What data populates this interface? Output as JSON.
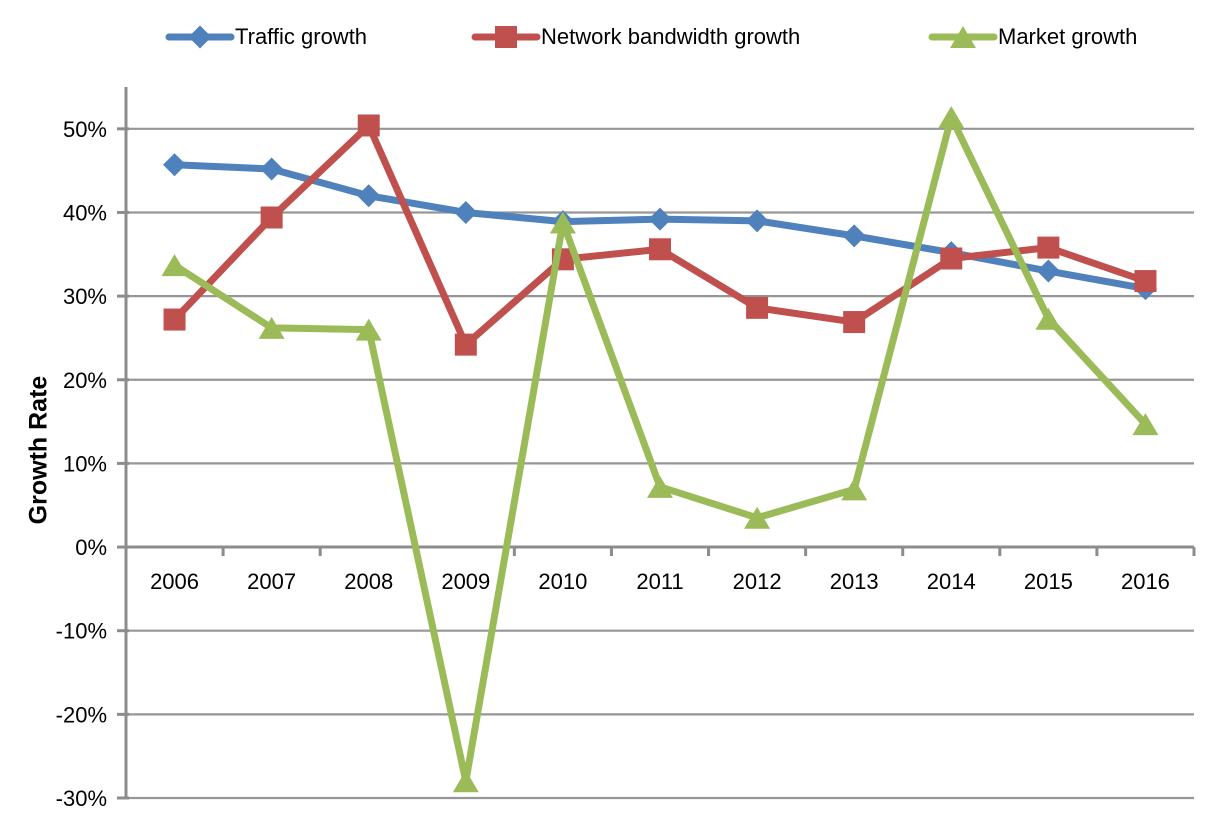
{
  "chart_data": {
    "type": "line",
    "title": "",
    "xlabel": "",
    "ylabel": "Growth Rate",
    "x": [
      "2006",
      "2007",
      "2008",
      "2009",
      "2010",
      "2011",
      "2012",
      "2013",
      "2014",
      "2015",
      "2016"
    ],
    "series": [
      {
        "name": "Traffic growth",
        "marker": "diamond",
        "color": "#4F81BD",
        "values": [
          45.7,
          45.2,
          42.0,
          40.0,
          38.9,
          39.2,
          39.0,
          37.2,
          35.2,
          33.0,
          30.9
        ]
      },
      {
        "name": "Network bandwidth growth",
        "marker": "square",
        "color": "#C0504D",
        "values": [
          27.2,
          39.4,
          50.4,
          24.2,
          34.4,
          35.6,
          28.6,
          26.9,
          34.5,
          35.8,
          31.8
        ]
      },
      {
        "name": "Market growth",
        "marker": "triangle",
        "color": "#9BBB59",
        "values": [
          33.7,
          26.2,
          26.0,
          -28.0,
          38.8,
          7.2,
          3.5,
          6.9,
          51.4,
          27.3,
          14.7
        ]
      }
    ],
    "ylim": [
      -30,
      55
    ],
    "ytick_start": 50,
    "ytick_step": 10,
    "ytick_suffix": "%",
    "grid": "horizontal",
    "legend_position": "top",
    "gridline_color": "#969696",
    "axis_color": "#8C8C8C",
    "text_color": "#000000",
    "background": "#FFFFFF"
  }
}
